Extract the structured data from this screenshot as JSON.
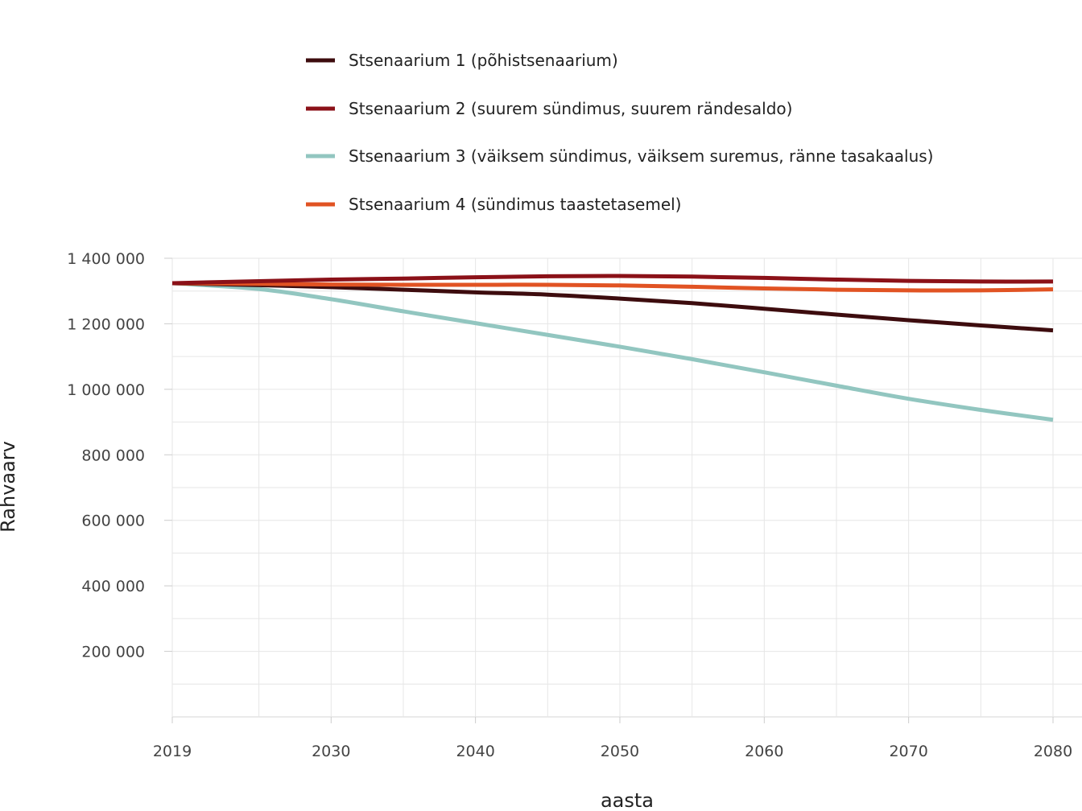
{
  "chart_data": {
    "type": "line",
    "title": "",
    "xlabel": "aasta",
    "ylabel": "Rahvaarv",
    "xlim": [
      2019,
      2080
    ],
    "ylim": [
      0,
      1400000
    ],
    "x_ticks": [
      2019,
      2030,
      2040,
      2050,
      2060,
      2070,
      2080
    ],
    "x_tick_labels": [
      "2019",
      "2030",
      "2040",
      "2050",
      "2060",
      "2070",
      "2080"
    ],
    "y_ticks": [
      200000,
      400000,
      600000,
      800000,
      1000000,
      1200000,
      1400000
    ],
    "y_tick_labels": [
      "200 000",
      "400 000",
      "600 000",
      "800 000",
      "1 000 000",
      "1 200 000",
      "1 400 000"
    ],
    "grid": true,
    "legend_position": "top",
    "x": [
      2019,
      2025,
      2030,
      2035,
      2040,
      2045,
      2050,
      2055,
      2060,
      2065,
      2070,
      2075,
      2080
    ],
    "series": [
      {
        "name": "Stsenaarium 1 (põhistsenaarium)",
        "color": "#3d0c0e",
        "values": [
          1324000,
          1318000,
          1312000,
          1304000,
          1296000,
          1289000,
          1277000,
          1263000,
          1246000,
          1228000,
          1211000,
          1195000,
          1180000
        ]
      },
      {
        "name": "Stsenaarium 2 (suurem sündimus, suurem rändesaldo)",
        "color": "#8b1118",
        "values": [
          1324000,
          1330000,
          1335000,
          1338000,
          1342000,
          1345000,
          1346000,
          1344000,
          1340000,
          1335000,
          1331000,
          1329000,
          1329000
        ]
      },
      {
        "name": "Stsenaarium 3 (väiksem sündimus, väiksem suremus, ränne tasakaalus)",
        "color": "#92c6c0",
        "values": [
          1324000,
          1306000,
          1275000,
          1238000,
          1202000,
          1166000,
          1130000,
          1092000,
          1052000,
          1011000,
          971000,
          937000,
          907000
        ]
      },
      {
        "name": "Stsenaarium 4 (sündimus taastetasemel)",
        "color": "#e15323",
        "values": [
          1324000,
          1322000,
          1320000,
          1319000,
          1319000,
          1319000,
          1317000,
          1313000,
          1308000,
          1304000,
          1302000,
          1302000,
          1305000
        ]
      }
    ]
  }
}
